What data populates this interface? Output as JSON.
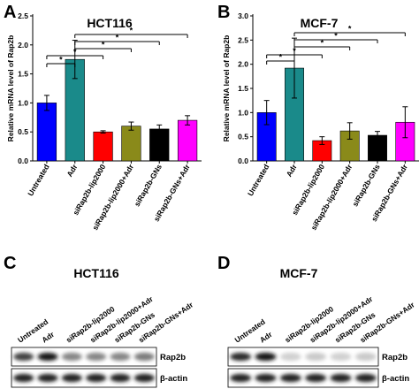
{
  "panels": {
    "A": "A",
    "B": "B",
    "C": "C",
    "D": "D"
  },
  "chart_data": [
    {
      "type": "bar",
      "title": "HCT116",
      "ylabel": "Relative mRNA level of Rap2b",
      "categories": [
        "Untreated",
        "Adr",
        "siRap2b-lip2000",
        "siRap2b-lip2000+Adr",
        "siRap2b-GNs",
        "siRap2b-GNs+Adr"
      ],
      "values": [
        1.0,
        1.75,
        0.5,
        0.6,
        0.55,
        0.7
      ],
      "errors": [
        0.13,
        0.33,
        0.02,
        0.07,
        0.07,
        0.08
      ],
      "colors": [
        "#0000ff",
        "#1a8a8a",
        "#ff0000",
        "#8a8a1a",
        "#000000",
        "#ff00ff"
      ],
      "ylim": [
        0.0,
        2.5
      ],
      "yticks": [
        "0.0",
        "0.5",
        "1.0",
        "1.5",
        "2.0",
        "2.5"
      ],
      "significance": [
        {
          "from": 0,
          "to": 1,
          "label": "*"
        },
        {
          "from": 0,
          "to": 2,
          "label": "*"
        },
        {
          "from": 1,
          "to": 3,
          "label": "*"
        },
        {
          "from": 1,
          "to": 4,
          "label": "*"
        },
        {
          "from": 1,
          "to": 5,
          "label": "*"
        }
      ]
    },
    {
      "type": "bar",
      "title": "MCF-7",
      "ylabel": "Relative mRNA level of Rap2b",
      "categories": [
        "Untreated",
        "Adr",
        "siRap2b-lip2000",
        "siRap2b-lip2000+Adr",
        "siRap2b-GNs",
        "siRap2b-GNs+Adr"
      ],
      "values": [
        1.0,
        1.92,
        0.42,
        0.62,
        0.53,
        0.8
      ],
      "errors": [
        0.25,
        0.62,
        0.08,
        0.17,
        0.08,
        0.32
      ],
      "colors": [
        "#0000ff",
        "#1a8a8a",
        "#ff0000",
        "#8a8a1a",
        "#000000",
        "#ff00ff"
      ],
      "ylim": [
        0.0,
        3.0
      ],
      "yticks": [
        "0.0",
        "0.5",
        "1.0",
        "1.5",
        "2.0",
        "2.5",
        "3.0"
      ],
      "significance": [
        {
          "from": 0,
          "to": 1,
          "label": "*"
        },
        {
          "from": 0,
          "to": 2,
          "label": "*"
        },
        {
          "from": 1,
          "to": 3,
          "label": "*"
        },
        {
          "from": 1,
          "to": 4,
          "label": "*"
        },
        {
          "from": 1,
          "to": 5,
          "label": "*"
        }
      ]
    }
  ],
  "blots": [
    {
      "title": "HCT116",
      "lanes": [
        "Untreated",
        "Adr",
        "siRap2b-lip2000",
        "siRap2b-lip2000+Adr",
        "siRap2b-GNs",
        "siRap2b-GNs+Adr"
      ],
      "rows": [
        {
          "label": "Rap2b",
          "intensity": [
            0.75,
            0.95,
            0.45,
            0.45,
            0.45,
            0.5
          ]
        },
        {
          "label": "β-actin",
          "intensity": [
            0.9,
            0.9,
            0.9,
            0.9,
            0.9,
            0.9
          ]
        }
      ]
    },
    {
      "title": "MCF-7",
      "lanes": [
        "Untreated",
        "Adr",
        "siRap2b-lip2000",
        "siRap2b-lip2000+Adr",
        "siRap2b-GNs",
        "siRap2b-GNs+Adr"
      ],
      "rows": [
        {
          "label": "Rap2b",
          "intensity": [
            0.85,
            0.95,
            0.12,
            0.15,
            0.12,
            0.15
          ]
        },
        {
          "label": "β-actin",
          "intensity": [
            0.9,
            0.9,
            0.9,
            0.9,
            0.9,
            0.9
          ]
        }
      ]
    }
  ]
}
